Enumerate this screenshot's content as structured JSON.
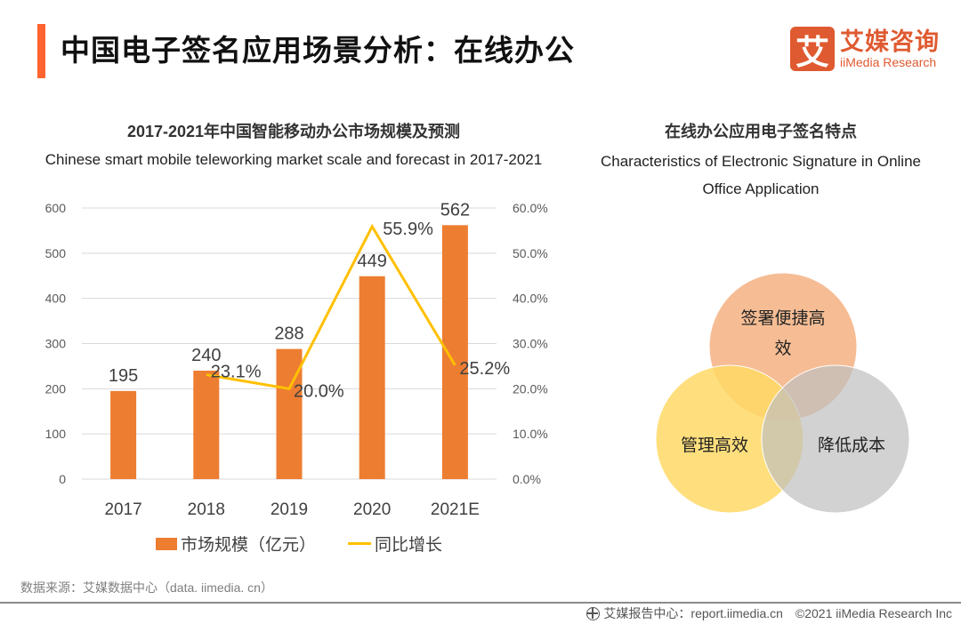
{
  "header": {
    "title": "中国电子签名应用场景分析：在线办公",
    "logo_mark": "艾",
    "logo_cn": "艾媒咨询",
    "logo_en": "iiMedia Research"
  },
  "left_panel": {
    "title_cn": "2017-2021年中国智能移动办公市场规模及预测",
    "title_en": "Chinese smart mobile teleworking market scale and forecast in 2017-2021"
  },
  "right_panel": {
    "title_cn": "在线办公应用电子签名特点",
    "title_en_line1": "Characteristics of Electronic Signature in Online",
    "title_en_line2": "Office Application",
    "venn": [
      {
        "label_line1": "签署便捷高",
        "label_line2": "效",
        "color": "#f4b183"
      },
      {
        "label_line1": "管理高效",
        "label_line2": "",
        "color": "#ffd966"
      },
      {
        "label_line1": "降低成本",
        "label_line2": "",
        "color": "#c9c9c9"
      }
    ]
  },
  "chart_data": {
    "type": "bar",
    "title": "2017-2021年中国智能移动办公市场规模及预测",
    "subtitle": "Chinese smart mobile teleworking market scale and forecast in 2017-2021",
    "categories": [
      "2017",
      "2018",
      "2019",
      "2020",
      "2021E"
    ],
    "series": [
      {
        "name": "市场规模（亿元）",
        "type": "bar",
        "axis": "left",
        "color": "#ed7d31",
        "values": [
          195,
          240,
          288,
          449,
          562
        ],
        "labels": [
          "195",
          "240",
          "288",
          "449",
          "562"
        ]
      },
      {
        "name": "同比增长",
        "type": "line",
        "axis": "right",
        "color": "#ffc000",
        "values": [
          null,
          23.1,
          20.0,
          55.9,
          25.2
        ],
        "labels": [
          "",
          "23.1%",
          "20.0%",
          "55.9%",
          "25.2%"
        ]
      }
    ],
    "y_left": {
      "min": 0,
      "max": 600,
      "ticks": [
        "0",
        "100",
        "200",
        "300",
        "400",
        "500",
        "600"
      ]
    },
    "y_right": {
      "min": 0,
      "max": 60,
      "ticks": [
        "0.0%",
        "10.0%",
        "20.0%",
        "30.0%",
        "40.0%",
        "50.0%",
        "60.0%"
      ]
    },
    "xlabel": "",
    "ylabel": "",
    "grid": true,
    "legend_position": "bottom"
  },
  "legend": {
    "bar_label": "市场规模（亿元）",
    "line_label": "同比增长"
  },
  "footer": {
    "source": "数据来源：艾媒数据中心（data. iimedia. cn）",
    "report_center": "艾媒报告中心：report.iimedia.cn",
    "copyright": "©2021  iiMedia Research  Inc"
  }
}
